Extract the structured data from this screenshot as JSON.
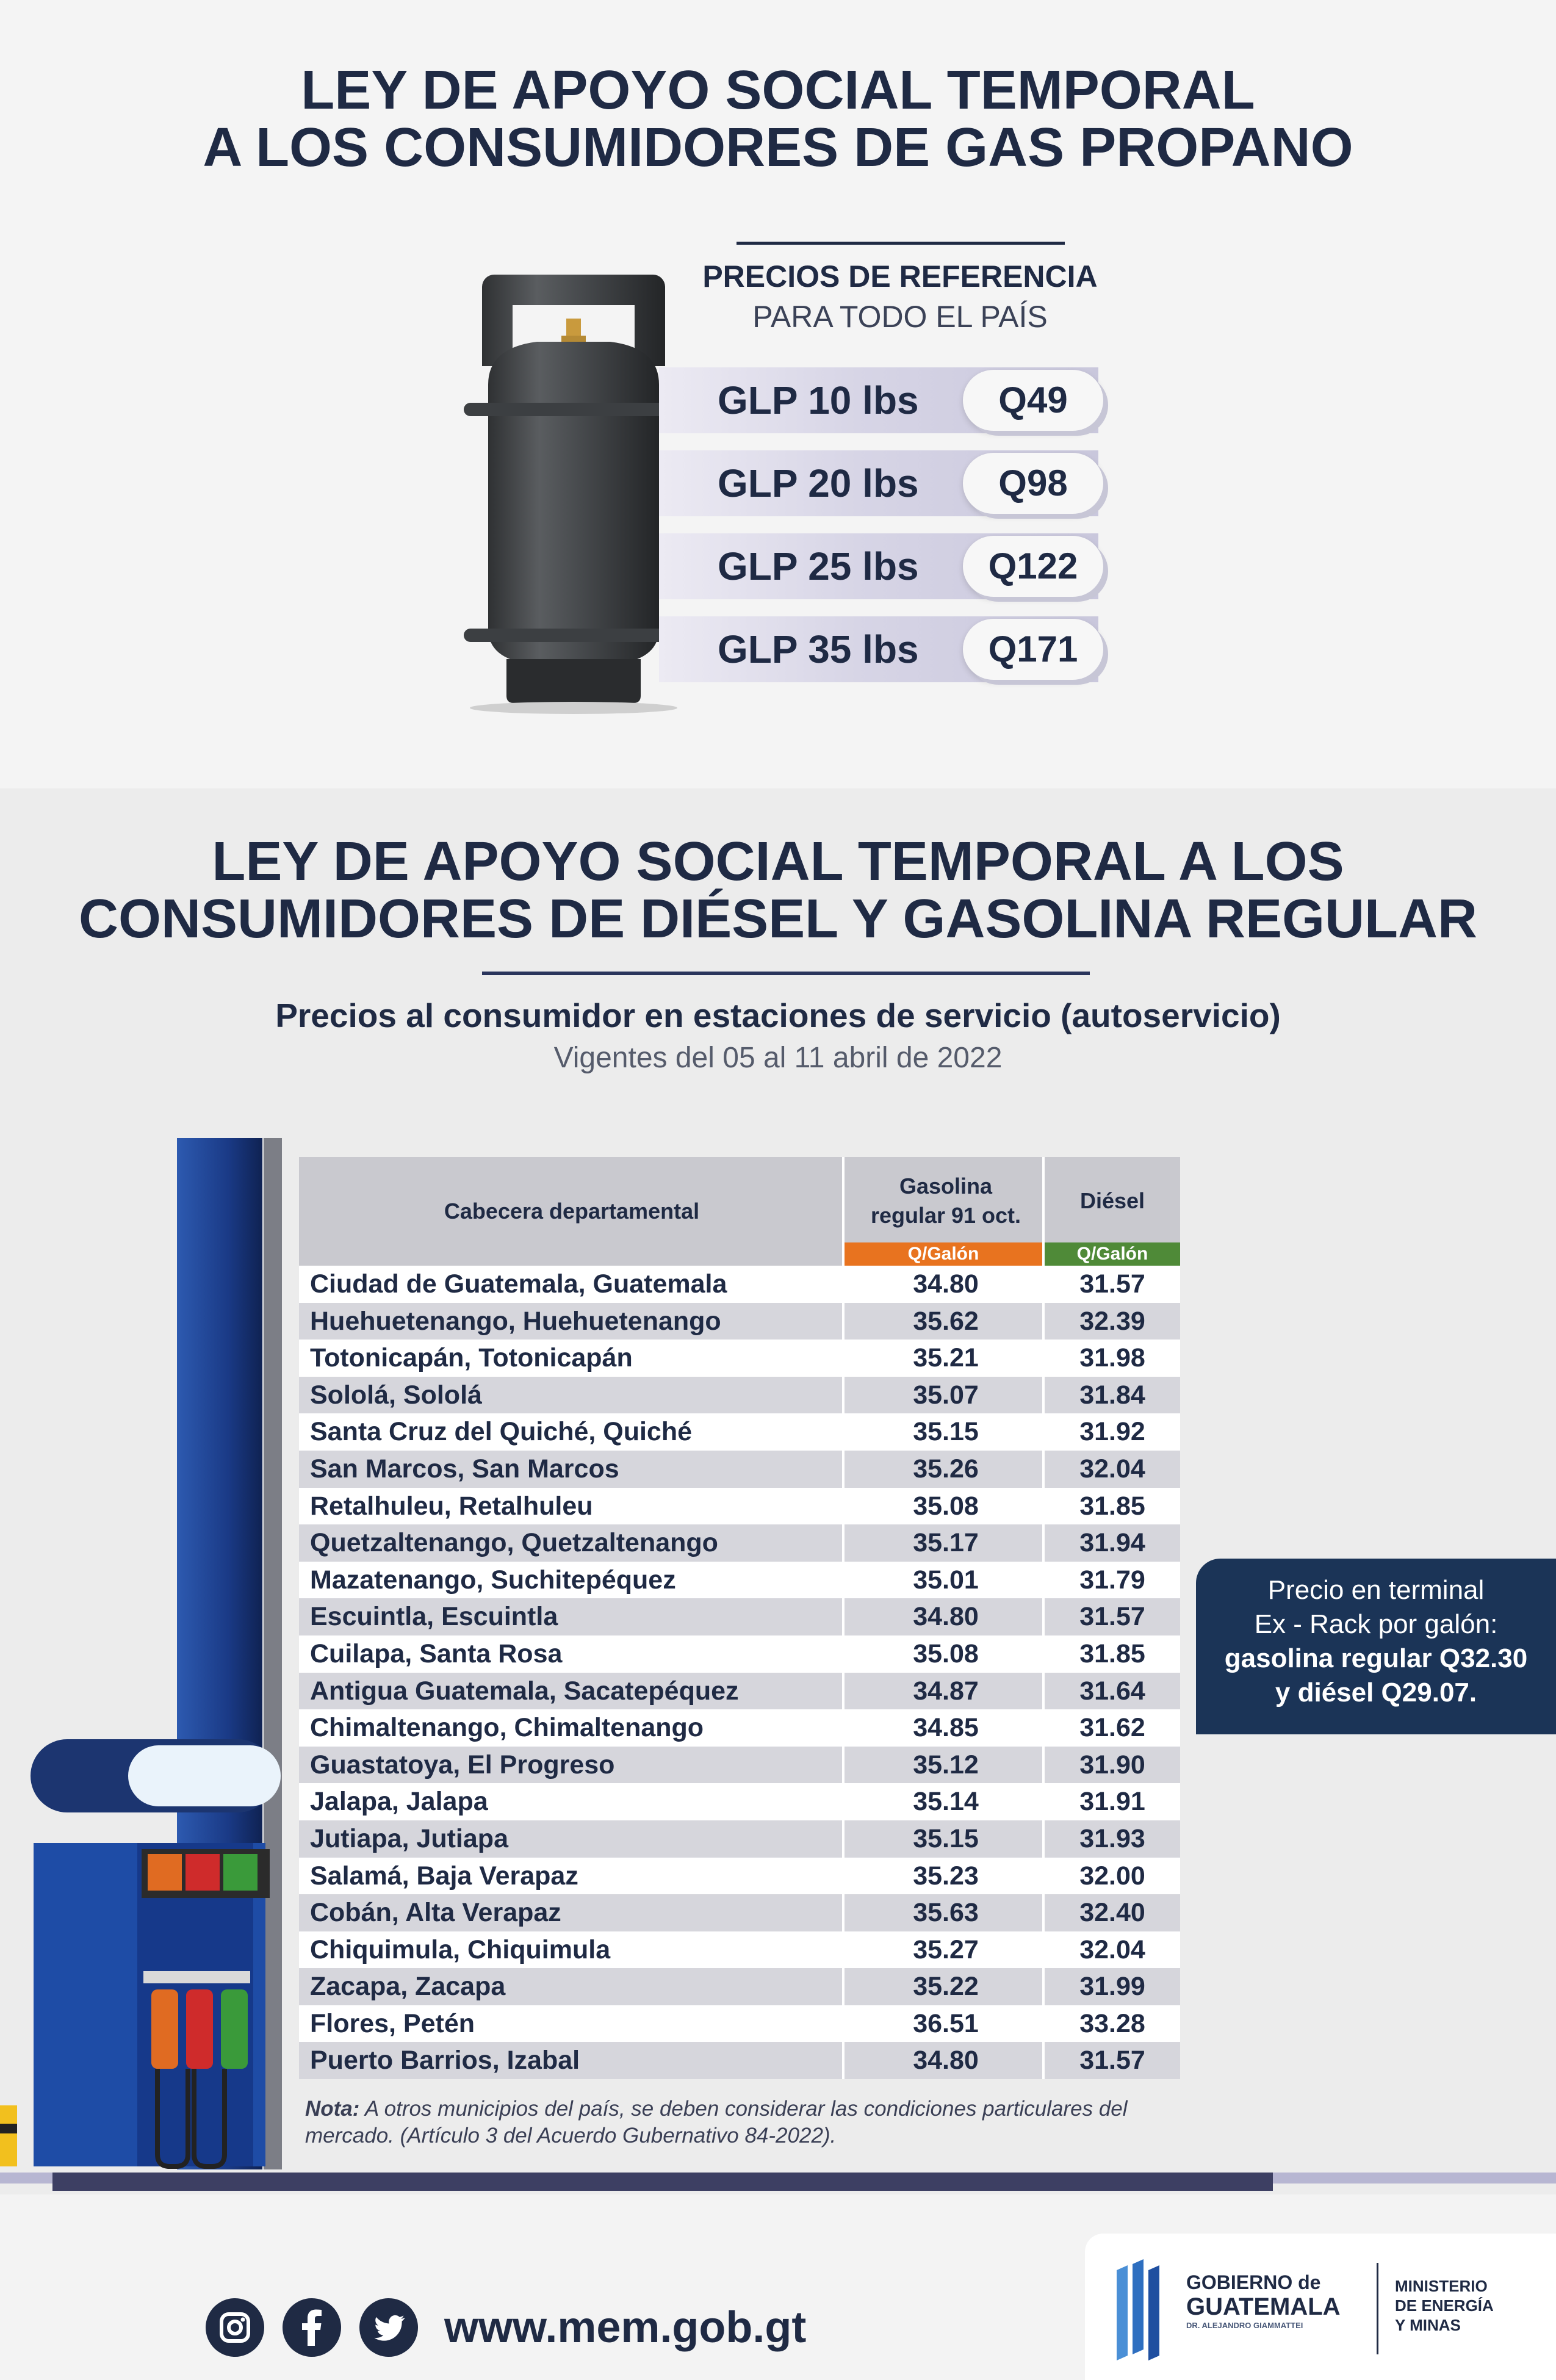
{
  "propane": {
    "title_line1": "LEY DE APOYO SOCIAL TEMPORAL",
    "title_line2": "A LOS CONSUMIDORES DE GAS PROPANO",
    "ref_heading": "PRECIOS DE REFERENCIA",
    "ref_sub": "PARA TODO EL PAÍS",
    "items": [
      {
        "label": "GLP 10 lbs",
        "price": "Q49"
      },
      {
        "label": "GLP 20 lbs",
        "price": "Q98"
      },
      {
        "label": "GLP 25 lbs",
        "price": "Q122"
      },
      {
        "label": "GLP 35 lbs",
        "price": "Q171"
      }
    ]
  },
  "fuel": {
    "title_line1": "LEY DE APOYO SOCIAL TEMPORAL A LOS",
    "title_line2": "CONSUMIDORES DE DIÉSEL Y GASOLINA REGULAR",
    "subtitle": "Precios al consumidor en estaciones de servicio (autoservicio)",
    "validity": "Vigentes del 05 al 11 abril de 2022",
    "table": {
      "col_city": "Cabecera departamental",
      "col_gas_line1": "Gasolina",
      "col_gas_line2": "regular 91 oct.",
      "col_diesel": "Diésel",
      "unit_gas": "Q/Galón",
      "unit_diesel": "Q/Galón",
      "rows": [
        {
          "city": "Ciudad de Guatemala, Guatemala",
          "gas": "34.80",
          "diesel": "31.57"
        },
        {
          "city": "Huehuetenango, Huehuetenango",
          "gas": "35.62",
          "diesel": "32.39"
        },
        {
          "city": "Totonicapán, Totonicapán",
          "gas": "35.21",
          "diesel": "31.98"
        },
        {
          "city": "Sololá, Sololá",
          "gas": "35.07",
          "diesel": "31.84"
        },
        {
          "city": "Santa Cruz del Quiché, Quiché",
          "gas": "35.15",
          "diesel": "31.92"
        },
        {
          "city": "San Marcos, San Marcos",
          "gas": "35.26",
          "diesel": "32.04"
        },
        {
          "city": "Retalhuleu, Retalhuleu",
          "gas": "35.08",
          "diesel": "31.85"
        },
        {
          "city": "Quetzaltenango, Quetzaltenango",
          "gas": "35.17",
          "diesel": "31.94"
        },
        {
          "city": "Mazatenango, Suchitepéquez",
          "gas": "35.01",
          "diesel": "31.79"
        },
        {
          "city": "Escuintla, Escuintla",
          "gas": "34.80",
          "diesel": "31.57"
        },
        {
          "city": "Cuilapa, Santa Rosa",
          "gas": "35.08",
          "diesel": "31.85"
        },
        {
          "city": "Antigua Guatemala, Sacatepéquez",
          "gas": "34.87",
          "diesel": "31.64"
        },
        {
          "city": "Chimaltenango, Chimaltenango",
          "gas": "34.85",
          "diesel": "31.62"
        },
        {
          "city": "Guastatoya, El Progreso",
          "gas": "35.12",
          "diesel": "31.90"
        },
        {
          "city": "Jalapa, Jalapa",
          "gas": "35.14",
          "diesel": "31.91"
        },
        {
          "city": "Jutiapa, Jutiapa",
          "gas": "35.15",
          "diesel": "31.93"
        },
        {
          "city": "Salamá, Baja Verapaz",
          "gas": "35.23",
          "diesel": "32.00"
        },
        {
          "city": "Cobán, Alta Verapaz",
          "gas": "35.63",
          "diesel": "32.40"
        },
        {
          "city": "Chiquimula, Chiquimula",
          "gas": "35.27",
          "diesel": "32.04"
        },
        {
          "city": "Zacapa, Zacapa",
          "gas": "35.22",
          "diesel": "31.99"
        },
        {
          "city": "Flores, Petén",
          "gas": "36.51",
          "diesel": "33.28"
        },
        {
          "city": "Puerto Barrios, Izabal",
          "gas": "34.80",
          "diesel": "31.57"
        }
      ]
    },
    "note_label": "Nota:",
    "note_text": " A otros municipios del país, se deben considerar las condiciones particulares del mercado.  (Artículo 3 del Acuerdo Gubernativo 84-2022).",
    "terminal": {
      "line1": "Precio en terminal",
      "line2": "Ex - Rack por galón:",
      "line3": "gasolina regular Q32.30",
      "line4": "y diésel Q29.07."
    }
  },
  "footer": {
    "website": "www.mem.gob.gt",
    "gov_line1": "GOBIERNO de",
    "gov_line2": "GUATEMALA",
    "gov_line3": "DR. ALEJANDRO GIAMMATTEI",
    "ministry_line1": "MINISTERIO",
    "ministry_line2": "DE ENERGÍA",
    "ministry_line3": "Y MINAS"
  },
  "colors": {
    "navy": "#1f2a44",
    "gas_orange": "#e8731f",
    "diesel_green": "#4f8a38",
    "terminal_bg": "#1b3457"
  }
}
